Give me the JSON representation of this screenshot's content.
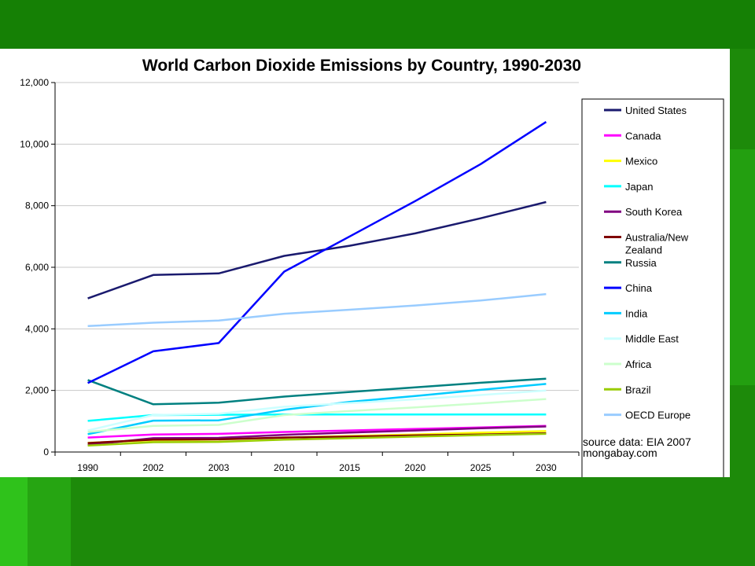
{
  "chart_data": {
    "type": "line",
    "title": "World Carbon Dioxide Emissions by Country, 1990-2030",
    "xlabel": "",
    "ylabel": "",
    "categories": [
      "1990",
      "2002",
      "2003",
      "2010",
      "2015",
      "2020",
      "2025",
      "2030"
    ],
    "yticks": [
      "0",
      "2,000",
      "4,000",
      "6,000",
      "8,000",
      "10,000",
      "12,000"
    ],
    "ylim": [
      0,
      12000
    ],
    "grid": true,
    "legend_position": "right",
    "series": [
      {
        "name": "United States",
        "color": "#1a1a6e",
        "values": [
          4990,
          5750,
          5800,
          6370,
          6700,
          7100,
          7590,
          8120
        ]
      },
      {
        "name": "Canada",
        "color": "#ff00ff",
        "values": [
          470,
          570,
          590,
          650,
          700,
          750,
          800,
          850
        ]
      },
      {
        "name": "Mexico",
        "color": "#ffff00",
        "values": [
          300,
          380,
          400,
          470,
          520,
          570,
          630,
          680
        ]
      },
      {
        "name": "Japan",
        "color": "#00ffff",
        "values": [
          1010,
          1200,
          1210,
          1220,
          1220,
          1220,
          1220,
          1220
        ]
      },
      {
        "name": "South Korea",
        "color": "#800080",
        "values": [
          230,
          450,
          460,
          560,
          630,
          700,
          770,
          830
        ]
      },
      {
        "name": "Australia/New Zealand",
        "color": "#800000",
        "values": [
          290,
          400,
          410,
          470,
          500,
          540,
          570,
          610
        ]
      },
      {
        "name": "Russia",
        "color": "#008080",
        "values": [
          2340,
          1550,
          1600,
          1800,
          1950,
          2100,
          2250,
          2380
        ]
      },
      {
        "name": "China",
        "color": "#0000ff",
        "values": [
          2240,
          3270,
          3540,
          5860,
          7000,
          8150,
          9350,
          10720
        ]
      },
      {
        "name": "India",
        "color": "#00ccff",
        "values": [
          580,
          1020,
          1030,
          1370,
          1630,
          1820,
          2020,
          2210
        ]
      },
      {
        "name": "Middle East",
        "color": "#ccffff",
        "values": [
          700,
          1200,
          1240,
          1470,
          1590,
          1710,
          1850,
          2000
        ]
      },
      {
        "name": "Africa",
        "color": "#ccffcc",
        "values": [
          650,
          850,
          880,
          1200,
          1330,
          1450,
          1580,
          1720
        ]
      },
      {
        "name": "Brazil",
        "color": "#99cc00",
        "values": [
          210,
          320,
          330,
          400,
          450,
          500,
          550,
          590
        ]
      },
      {
        "name": "OECD Europe",
        "color": "#99ccff",
        "values": [
          4090,
          4200,
          4270,
          4490,
          4620,
          4760,
          4920,
          5130
        ]
      }
    ],
    "annotations": [
      "source data: EIA 2007",
      "mongabay.com"
    ]
  }
}
